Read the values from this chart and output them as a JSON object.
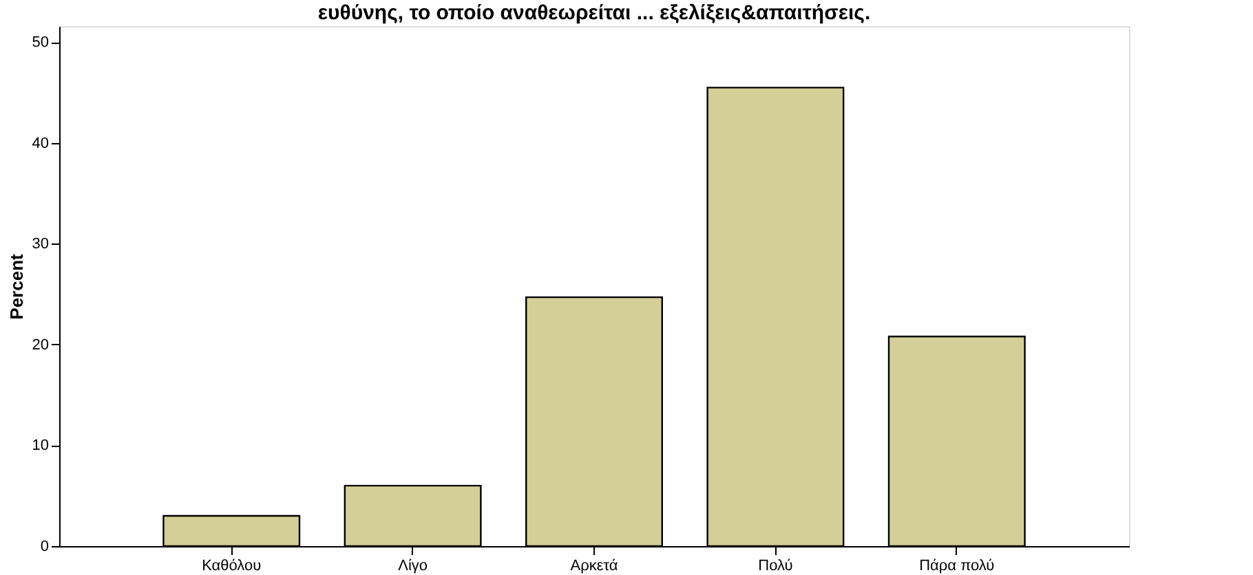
{
  "chart_data": {
    "type": "bar",
    "title": "ευθύνης, το οποίο αναθεωρείται ... εξελίξεις&απαιτήσεις.",
    "ylabel": "Percent",
    "categories": [
      "Καθόλου",
      "Λίγο",
      "Αρκετά",
      "Πολύ",
      "Πάρα πολύ"
    ],
    "values": [
      3.0,
      6.0,
      24.7,
      45.5,
      20.8
    ],
    "color": "#d3cf97",
    "ylim": [
      0,
      51.6
    ],
    "yticks": [
      0,
      10,
      20,
      30,
      40,
      50
    ],
    "grid": false
  }
}
